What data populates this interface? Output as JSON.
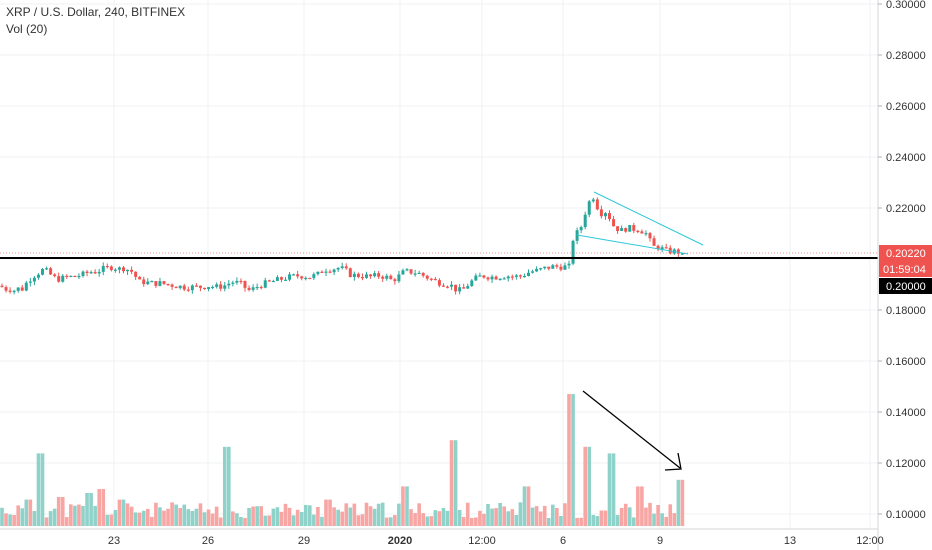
{
  "header": {
    "symbol_line": "XRP / U.S. Dollar, 240, BITFINEX",
    "volume_label": "Vol (20)"
  },
  "price_axis": {
    "ticks": [
      "0.30000",
      "0.28000",
      "0.26000",
      "0.24000",
      "0.22000",
      "0.18000",
      "0.16000",
      "0.14000",
      "0.12000",
      "0.10000"
    ],
    "last_price": "0.20220",
    "countdown": "01:59:04",
    "level_label": "0.20000"
  },
  "time_axis": {
    "labels": [
      "23",
      "26",
      "29",
      "2020",
      "12:00",
      "6",
      "9",
      "13",
      "12:00"
    ]
  },
  "colors": {
    "up": "#26a69a",
    "down": "#ef5350",
    "vol_up": "#8fd2c9",
    "vol_down": "#f7a6a4",
    "channel": "#2ec8d8",
    "last_price_bg": "#ef5350",
    "level_line": "#000000",
    "grid": "#eef0f3"
  },
  "chart_data": {
    "type": "candlestick",
    "title": "XRP / U.S. Dollar, 240, BITFINEX",
    "price_range": [
      0.095,
      0.302
    ],
    "horizontal_level": 0.2,
    "last_price": 0.2022,
    "grid": true,
    "y_ticks": [
      0.3,
      0.28,
      0.26,
      0.24,
      0.22,
      0.2,
      0.18,
      0.16,
      0.14,
      0.12,
      0.1
    ],
    "price_path": [
      [
        0,
        0.1895
      ],
      [
        4,
        0.1885
      ],
      [
        8,
        0.188
      ],
      [
        11,
        0.1885
      ],
      [
        13,
        0.1875
      ],
      [
        18,
        0.1885
      ],
      [
        21,
        0.1875
      ],
      [
        25,
        0.19
      ],
      [
        32,
        0.193
      ],
      [
        40,
        0.195
      ],
      [
        44,
        0.196
      ],
      [
        50,
        0.194
      ],
      [
        55,
        0.1925
      ],
      [
        60,
        0.192
      ],
      [
        66,
        0.193
      ],
      [
        72,
        0.193
      ],
      [
        78,
        0.1935
      ],
      [
        84,
        0.194
      ],
      [
        90,
        0.195
      ],
      [
        96,
        0.195
      ],
      [
        102,
        0.196
      ],
      [
        108,
        0.1965
      ],
      [
        113,
        0.197
      ],
      [
        118,
        0.196
      ],
      [
        124,
        0.1965
      ],
      [
        130,
        0.1955
      ],
      [
        134,
        0.1945
      ],
      [
        138,
        0.191
      ],
      [
        144,
        0.191
      ],
      [
        152,
        0.1905
      ],
      [
        160,
        0.1905
      ],
      [
        168,
        0.19
      ],
      [
        176,
        0.1895
      ],
      [
        184,
        0.189
      ],
      [
        192,
        0.189
      ],
      [
        200,
        0.189
      ],
      [
        208,
        0.1895
      ],
      [
        216,
        0.189
      ],
      [
        224,
        0.1895
      ],
      [
        232,
        0.191
      ],
      [
        240,
        0.1905
      ],
      [
        246,
        0.1885
      ],
      [
        250,
        0.1875
      ],
      [
        256,
        0.189
      ],
      [
        262,
        0.19
      ],
      [
        270,
        0.191
      ],
      [
        280,
        0.192
      ],
      [
        290,
        0.193
      ],
      [
        300,
        0.1935
      ],
      [
        310,
        0.193
      ],
      [
        318,
        0.194
      ],
      [
        324,
        0.196
      ],
      [
        330,
        0.196
      ],
      [
        338,
        0.1965
      ],
      [
        344,
        0.196
      ],
      [
        350,
        0.194
      ],
      [
        356,
        0.1935
      ],
      [
        362,
        0.1935
      ],
      [
        370,
        0.193
      ],
      [
        378,
        0.1935
      ],
      [
        386,
        0.193
      ],
      [
        392,
        0.1915
      ],
      [
        398,
        0.193
      ],
      [
        404,
        0.195
      ],
      [
        410,
        0.195
      ],
      [
        418,
        0.1945
      ],
      [
        426,
        0.193
      ],
      [
        434,
        0.1915
      ],
      [
        442,
        0.1905
      ],
      [
        450,
        0.19
      ],
      [
        456,
        0.188
      ],
      [
        462,
        0.1875
      ],
      [
        468,
        0.19
      ],
      [
        474,
        0.192
      ],
      [
        482,
        0.1935
      ],
      [
        490,
        0.193
      ],
      [
        498,
        0.193
      ],
      [
        506,
        0.1935
      ],
      [
        514,
        0.193
      ],
      [
        522,
        0.1935
      ],
      [
        530,
        0.195
      ],
      [
        538,
        0.1955
      ],
      [
        546,
        0.1965
      ],
      [
        552,
        0.197
      ],
      [
        560,
        0.197
      ],
      [
        566,
        0.197
      ],
      [
        570,
        0.197
      ],
      [
        572,
        0.207
      ],
      [
        576,
        0.21
      ],
      [
        580,
        0.211
      ],
      [
        584,
        0.217
      ],
      [
        588,
        0.221
      ],
      [
        592,
        0.2255
      ],
      [
        596,
        0.222
      ],
      [
        600,
        0.2175
      ],
      [
        604,
        0.219
      ],
      [
        608,
        0.218
      ],
      [
        612,
        0.2135
      ],
      [
        616,
        0.2125
      ],
      [
        620,
        0.211
      ],
      [
        624,
        0.2115
      ],
      [
        628,
        0.2125
      ],
      [
        632,
        0.2115
      ],
      [
        636,
        0.212
      ],
      [
        640,
        0.2115
      ],
      [
        644,
        0.2105
      ],
      [
        648,
        0.2095
      ],
      [
        652,
        0.2045
      ],
      [
        656,
        0.205
      ],
      [
        660,
        0.2045
      ],
      [
        664,
        0.2035
      ],
      [
        668,
        0.203
      ],
      [
        672,
        0.203
      ],
      [
        676,
        0.203
      ],
      [
        680,
        0.2025
      ],
      [
        684,
        0.2022
      ],
      [
        687,
        0.2022
      ]
    ],
    "volume_profile": [
      {
        "x": 30,
        "v": 0.2
      },
      {
        "x": 42,
        "v": 0.55
      },
      {
        "x": 60,
        "v": 0.22
      },
      {
        "x": 90,
        "v": 0.25
      },
      {
        "x": 102,
        "v": 0.28
      },
      {
        "x": 120,
        "v": 0.2
      },
      {
        "x": 228,
        "v": 0.6
      },
      {
        "x": 260,
        "v": 0.15
      },
      {
        "x": 330,
        "v": 0.2
      },
      {
        "x": 405,
        "v": 0.3
      },
      {
        "x": 454,
        "v": 0.65
      },
      {
        "x": 528,
        "v": 0.3
      },
      {
        "x": 572,
        "v": 1.0
      },
      {
        "x": 588,
        "v": 0.6
      },
      {
        "x": 612,
        "v": 0.55
      },
      {
        "x": 640,
        "v": 0.3
      },
      {
        "x": 680,
        "v": 0.35
      }
    ],
    "annotations": [
      {
        "type": "falling_wedge_channel"
      },
      {
        "type": "downward_arrow_over_volume"
      }
    ]
  }
}
